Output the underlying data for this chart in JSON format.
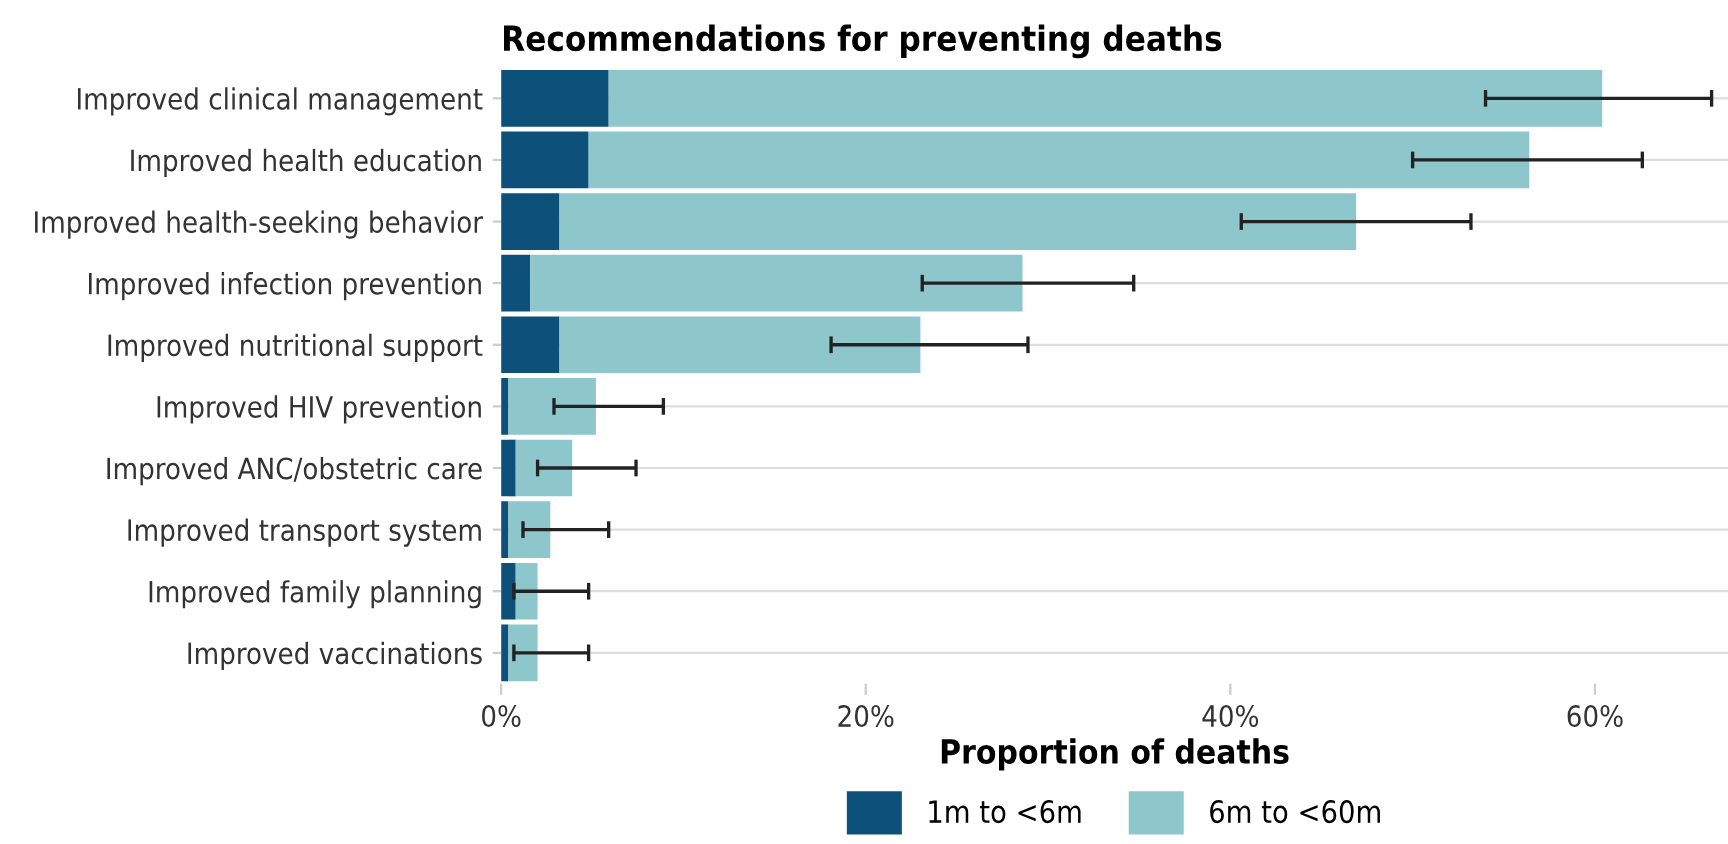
{
  "chart_data": {
    "type": "bar",
    "orientation": "horizontal",
    "stacked": true,
    "title": "Recommendations for preventing deaths",
    "xlabel": "Proportion of deaths",
    "categories": [
      "Improved clinical management",
      "Improved health education",
      "Improved health-seeking behavior",
      "Improved infection prevention",
      "Improved nutritional support",
      "Improved HIV prevention",
      "Improved ANC/obstetric care",
      "Improved transport system",
      "Improved family planning",
      "Improved vaccinations"
    ],
    "series": [
      {
        "name": "1m to <6m",
        "color": "#0d5079",
        "values": [
          5.9,
          4.8,
          3.2,
          1.6,
          3.2,
          0.4,
          0.8,
          0.4,
          0.8,
          0.4
        ]
      },
      {
        "name": "6m to <60m",
        "color": "#8dc7cb",
        "values": [
          54.5,
          51.6,
          43.7,
          27.0,
          19.8,
          4.8,
          3.1,
          2.3,
          1.2,
          1.6
        ],
        "errors": [
          [
            54.0,
            66.4
          ],
          [
            50.0,
            62.6
          ],
          [
            40.6,
            53.2
          ],
          [
            23.1,
            34.7
          ],
          [
            18.1,
            28.9
          ],
          [
            2.9,
            8.9
          ],
          [
            2.0,
            7.4
          ],
          [
            1.2,
            5.9
          ],
          [
            0.7,
            4.8
          ],
          [
            0.7,
            4.8
          ]
        ]
      }
    ],
    "xlim": [
      0,
      67.3
    ],
    "xticks": [
      {
        "value": 0,
        "label": "0%"
      },
      {
        "value": 20,
        "label": "20%"
      },
      {
        "value": 40,
        "label": "40%"
      },
      {
        "value": 60,
        "label": "60%"
      }
    ],
    "grid": "y",
    "legend": "bottom"
  }
}
